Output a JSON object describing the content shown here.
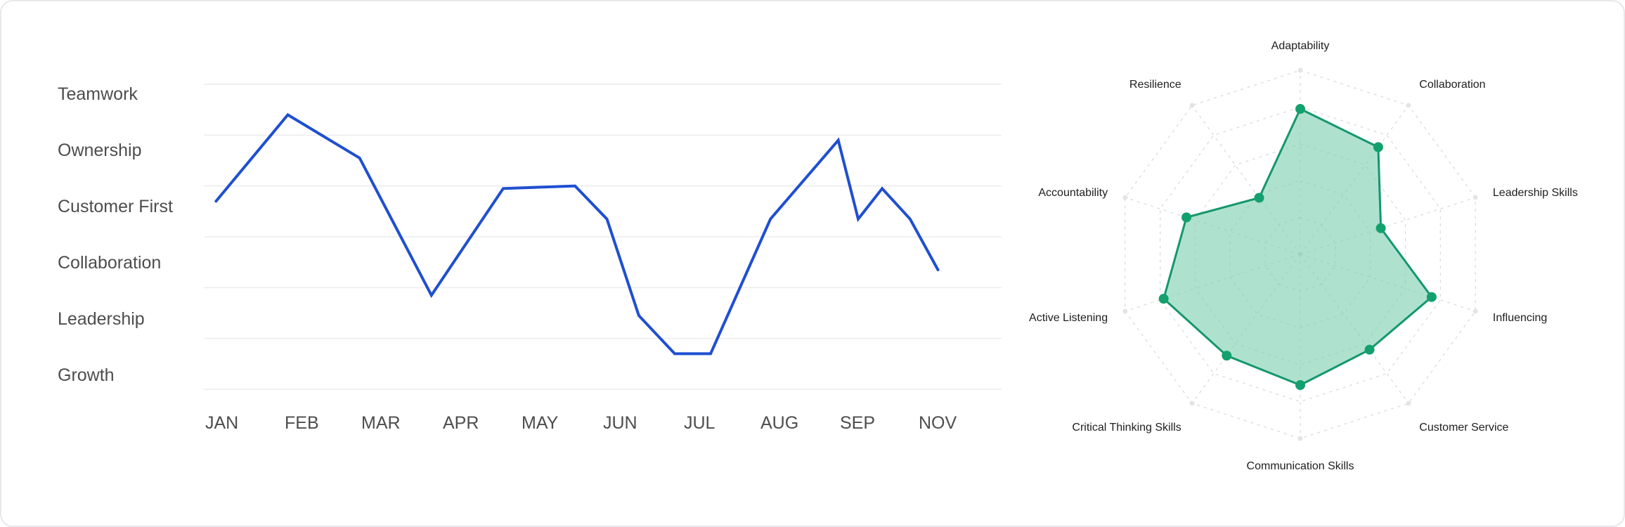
{
  "charts": [
    {
      "type": "line",
      "title": "",
      "xlabel": "",
      "ylabel": "",
      "x_labels": [
        "JAN",
        "FEB",
        "MAR",
        "APR",
        "MAY",
        "JUN",
        "JUL",
        "AUG",
        "SEP",
        "NOV"
      ],
      "y_labels": [
        "Teamwork",
        "Ownership",
        "Customer First",
        "Collaboration",
        "Leadership",
        "Growth"
      ],
      "colors": {
        "line": "#1f4fd0",
        "grid": "#ececec",
        "text": "#4d4d4d"
      }
    },
    {
      "type": "radar",
      "title": "",
      "axes": [
        "Adaptability",
        "Collaboration",
        "Leadership Skills",
        "Influencing",
        "Customer Service",
        "Communication Skills",
        "Critical Thinking Skills",
        "Active Listening",
        "Accountability",
        "Resilience"
      ],
      "colors": {
        "stroke": "#14976f",
        "fill": "#7ed0b0",
        "point": "#13a06f",
        "grid": "#d9d9d9",
        "text": "#202020"
      }
    }
  ],
  "chart_data": [
    {
      "type": "line",
      "x": [
        0.1,
        1.0,
        1.9,
        2.8,
        3.7,
        4.6,
        5.0,
        5.4,
        5.85,
        6.3,
        7.05,
        7.9,
        8.15,
        8.45,
        8.8,
        9.15
      ],
      "y": [
        3.7,
        5.4,
        4.55,
        1.85,
        3.95,
        4.0,
        3.35,
        1.45,
        0.7,
        0.7,
        3.35,
        4.9,
        3.35,
        3.95,
        3.35,
        2.35
      ],
      "y_categories": [
        "Growth",
        "Leadership",
        "Collaboration",
        "Customer First",
        "Ownership",
        "Teamwork"
      ],
      "x_categories": [
        "JAN",
        "FEB",
        "MAR",
        "APR",
        "MAY",
        "JUN",
        "JUL",
        "AUG",
        "SEP",
        "NOV"
      ],
      "ylim": [
        0,
        6
      ],
      "grid": true
    },
    {
      "type": "radar",
      "categories": [
        "Adaptability",
        "Collaboration",
        "Leadership Skills",
        "Influencing",
        "Customer Service",
        "Communication Skills",
        "Critical Thinking Skills",
        "Active Listening",
        "Accountability",
        "Resilience"
      ],
      "values": [
        79,
        72,
        46,
        75,
        64,
        71,
        68,
        78,
        65,
        38
      ],
      "rlim": [
        0,
        100
      ],
      "grid_levels": 5
    }
  ]
}
